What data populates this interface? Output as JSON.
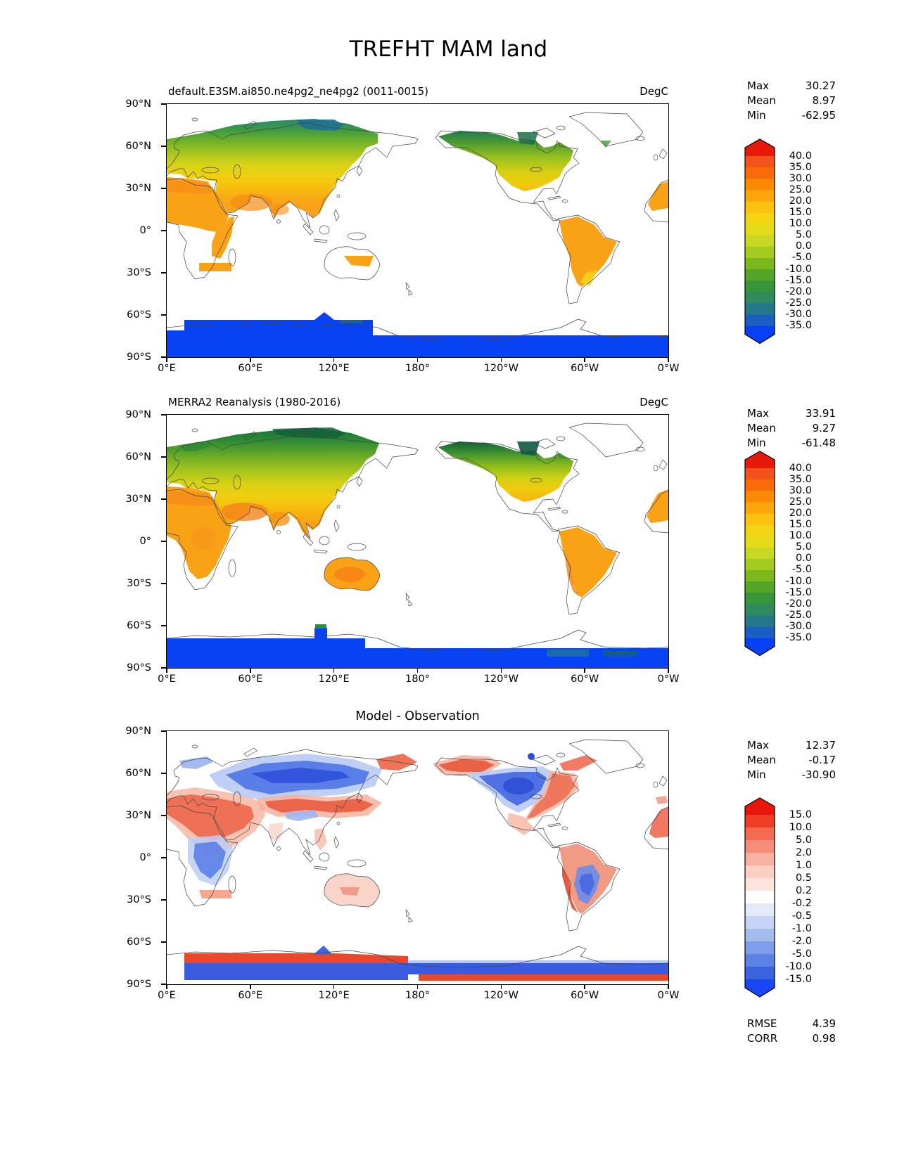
{
  "title": "TREFHT MAM land",
  "axes": {
    "lat_ticks": [
      "90°N",
      "60°N",
      "30°N",
      "0°",
      "30°S",
      "60°S",
      "90°S"
    ],
    "lon_ticks": [
      "0°E",
      "60°E",
      "120°E",
      "180°",
      "120°W",
      "60°W",
      "0°W"
    ]
  },
  "panels": [
    {
      "id": "model",
      "subtitle": "default.E3SM.ai850.ne4pg2_ne4pg2 (0011-0015)",
      "units": "DegC",
      "stats": [
        {
          "label": "Max",
          "value": "30.27"
        },
        {
          "label": "Mean",
          "value": "8.97"
        },
        {
          "label": "Min",
          "value": "-62.95"
        }
      ],
      "colorbar": {
        "ticks": [
          "40.0",
          "35.0",
          "30.0",
          "25.0",
          "20.0",
          "15.0",
          "10.0",
          "5.0",
          "0.0",
          "-5.0",
          "-10.0",
          "-15.0",
          "-20.0",
          "-25.0",
          "-30.0",
          "-35.0"
        ],
        "over": "#e81a0c",
        "bands": [
          "#f3521b",
          "#f96a09",
          "#fb8904",
          "#fda50a",
          "#fdc10f",
          "#f4d313",
          "#e4dc1a",
          "#c8d824",
          "#a3cb20",
          "#7cb91f",
          "#54a627",
          "#37953c",
          "#2f8a60",
          "#23798b",
          "#1b5fc2"
        ],
        "under": "#0540f5"
      }
    },
    {
      "id": "obs",
      "subtitle": "MERRA2 Reanalysis (1980-2016)",
      "units": "DegC",
      "stats": [
        {
          "label": "Max",
          "value": "33.91"
        },
        {
          "label": "Mean",
          "value": "9.27"
        },
        {
          "label": "Min",
          "value": "-61.48"
        }
      ],
      "colorbar": {
        "ticks": [
          "40.0",
          "35.0",
          "30.0",
          "25.0",
          "20.0",
          "15.0",
          "10.0",
          "5.0",
          "0.0",
          "-5.0",
          "-10.0",
          "-15.0",
          "-20.0",
          "-25.0",
          "-30.0",
          "-35.0"
        ],
        "over": "#e81a0c",
        "bands": [
          "#f3521b",
          "#f96a09",
          "#fb8904",
          "#fda50a",
          "#fdc10f",
          "#f4d313",
          "#e4dc1a",
          "#c8d824",
          "#a3cb20",
          "#7cb91f",
          "#54a627",
          "#37953c",
          "#2f8a60",
          "#23798b",
          "#1b5fc2"
        ],
        "under": "#0540f5"
      }
    },
    {
      "id": "diff",
      "subtitle": "Model - Observation",
      "units": "",
      "stats": [
        {
          "label": "Max",
          "value": "12.37"
        },
        {
          "label": "Mean",
          "value": "-0.17"
        },
        {
          "label": "Min",
          "value": "-30.90"
        }
      ],
      "extra_stats": [
        {
          "label": "RMSE",
          "value": "4.39"
        },
        {
          "label": "CORR",
          "value": "0.98"
        }
      ],
      "colorbar": {
        "ticks": [
          "15.0",
          "10.0",
          "5.0",
          "2.0",
          "1.0",
          "0.5",
          "0.2",
          "-0.2",
          "-0.5",
          "-1.0",
          "-2.0",
          "-5.0",
          "-10.0",
          "-15.0"
        ],
        "over": "#e8170b",
        "bands": [
          "#ee3d25",
          "#f26a50",
          "#f58e78",
          "#f8b2a2",
          "#fbcfc4",
          "#fde5de",
          "#ffffff",
          "#e3ebfa",
          "#c6d5f5",
          "#a3bcf0",
          "#7e9eeb",
          "#5c82e6",
          "#3a63e0"
        ],
        "under": "#1a47f5"
      }
    }
  ],
  "chart_data": [
    {
      "type": "heatmap",
      "title": "default.E3SM.ai850.ne4pg2_ne4pg2 (0011-0015)",
      "variable": "TREFHT",
      "season": "MAM",
      "region": "land",
      "units": "DegC",
      "projection": "global cylindrical, longitude 0E-360E, latitude 90S-90N, land-only filled contours",
      "max": 30.27,
      "mean": 8.97,
      "min": -62.95,
      "contour_levels": [
        -35,
        -30,
        -25,
        -20,
        -15,
        -10,
        -5,
        0,
        5,
        10,
        15,
        20,
        25,
        30,
        35,
        40
      ],
      "colormap": "rainbow (blue to red), extended arrows both ends"
    },
    {
      "type": "heatmap",
      "title": "MERRA2 Reanalysis (1980-2016)",
      "variable": "TREFHT",
      "season": "MAM",
      "region": "land",
      "units": "DegC",
      "projection": "global cylindrical, longitude 0E-360E, latitude 90S-90N, land-only filled contours",
      "max": 33.91,
      "mean": 9.27,
      "min": -61.48,
      "contour_levels": [
        -35,
        -30,
        -25,
        -20,
        -15,
        -10,
        -5,
        0,
        5,
        10,
        15,
        20,
        25,
        30,
        35,
        40
      ],
      "colormap": "rainbow (blue to red), extended arrows both ends"
    },
    {
      "type": "heatmap",
      "title": "Model - Observation",
      "variable": "TREFHT difference",
      "season": "MAM",
      "region": "land",
      "units": "DegC",
      "projection": "global cylindrical, longitude 0E-360E, latitude 90S-90N, land-only filled contours",
      "max": 12.37,
      "mean": -0.17,
      "min": -30.9,
      "rmse": 4.39,
      "corr": 0.98,
      "contour_levels": [
        -15,
        -10,
        -5,
        -2,
        -1,
        -0.5,
        -0.2,
        0.2,
        0.5,
        1,
        2,
        5,
        10,
        15
      ],
      "colormap": "diverging blue-white-red, extended arrows both ends"
    }
  ]
}
